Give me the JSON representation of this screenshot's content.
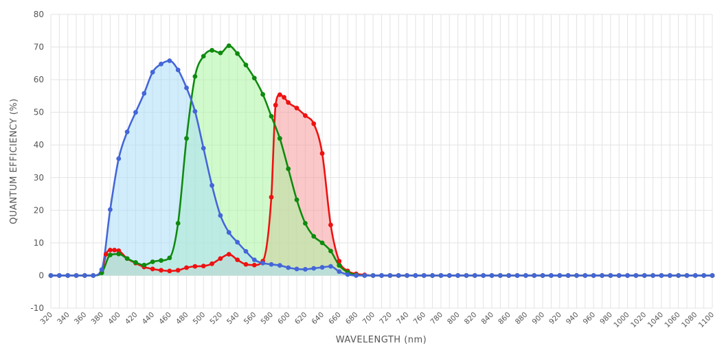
{
  "chart_data": {
    "type": "line",
    "xlabel": "WAVELENGTH (nm)",
    "ylabel": "QUANTUM EFFICIENCY (%)",
    "xlim": [
      320,
      1100
    ],
    "ylim": [
      -10,
      80
    ],
    "y_ticks": [
      -10,
      0,
      10,
      20,
      30,
      40,
      50,
      60,
      70,
      80
    ],
    "x_ticks": [
      320,
      340,
      360,
      380,
      400,
      420,
      440,
      460,
      480,
      500,
      520,
      540,
      560,
      580,
      600,
      620,
      640,
      660,
      680,
      700,
      720,
      740,
      760,
      780,
      800,
      820,
      840,
      860,
      880,
      900,
      920,
      940,
      960,
      980,
      1000,
      1020,
      1040,
      1060,
      1080,
      1100
    ],
    "grid": true,
    "fill_under": true,
    "series": [
      {
        "color": "#ee1111",
        "fill": "#f59b9b",
        "x": [
          320,
          330,
          340,
          350,
          360,
          370,
          380,
          385,
          390,
          395,
          400,
          410,
          420,
          430,
          440,
          450,
          460,
          470,
          480,
          490,
          500,
          510,
          520,
          530,
          540,
          550,
          560,
          570,
          580,
          585,
          590,
          595,
          600,
          610,
          620,
          630,
          640,
          650,
          660,
          670,
          680,
          690,
          700,
          710,
          720,
          730,
          740,
          750,
          760,
          770,
          780,
          790,
          800,
          810,
          820,
          830,
          840,
          850,
          860,
          870,
          880,
          890,
          900,
          910,
          920,
          930,
          940,
          950,
          960,
          970,
          980,
          990,
          1000,
          1010,
          1020,
          1030,
          1040,
          1050,
          1060,
          1070,
          1080,
          1090,
          1100
        ],
        "values": [
          0,
          0,
          0,
          0,
          0,
          0,
          1,
          6.5,
          7.8,
          7.8,
          7.6,
          5.2,
          3.8,
          2.6,
          2,
          1.6,
          1.4,
          1.6,
          2.4,
          2.8,
          2.9,
          3.6,
          5.2,
          6.5,
          4.8,
          3.4,
          3.2,
          4.4,
          24,
          52.2,
          55.4,
          54.6,
          53,
          51.3,
          49,
          46.5,
          37.4,
          15.5,
          4.4,
          1.4,
          0.5,
          0.2,
          0,
          0,
          0,
          0,
          0,
          0,
          0,
          0,
          0,
          0,
          0,
          0,
          0,
          0,
          0,
          0,
          0,
          0,
          0,
          0,
          0,
          0,
          0,
          0,
          0,
          0,
          0,
          0,
          0,
          0,
          0,
          0,
          0,
          0,
          0,
          0,
          0,
          0,
          0,
          0,
          0
        ]
      },
      {
        "color": "#0f8a0f",
        "fill": "#aaf5a0",
        "x": [
          320,
          330,
          340,
          350,
          360,
          370,
          380,
          390,
          400,
          410,
          420,
          430,
          440,
          450,
          460,
          470,
          480,
          490,
          500,
          510,
          520,
          530,
          540,
          550,
          560,
          570,
          580,
          590,
          600,
          610,
          620,
          630,
          640,
          650,
          660,
          670,
          680,
          690,
          700,
          710,
          720,
          730,
          740,
          750,
          760,
          770,
          780,
          790,
          800,
          810,
          820,
          830,
          840,
          850,
          860,
          870,
          880,
          890,
          900,
          910,
          920,
          930,
          940,
          950,
          960,
          970,
          980,
          990,
          1000,
          1010,
          1020,
          1030,
          1040,
          1050,
          1060,
          1070,
          1080,
          1090,
          1100
        ],
        "values": [
          0,
          0,
          0,
          0,
          0,
          0,
          0.8,
          6.3,
          6.6,
          5.2,
          4,
          3.2,
          4.2,
          4.6,
          5.4,
          16,
          42,
          61,
          67.2,
          69,
          68.2,
          70.4,
          68,
          64.5,
          60.5,
          55.5,
          48.8,
          42,
          32.7,
          23.2,
          16,
          12,
          10,
          7.5,
          3.1,
          1,
          0.2,
          0,
          0,
          0,
          0,
          0,
          0,
          0,
          0,
          0,
          0,
          0,
          0,
          0,
          0,
          0,
          0,
          0,
          0,
          0,
          0,
          0,
          0,
          0,
          0,
          0,
          0,
          0,
          0,
          0,
          0,
          0,
          0,
          0,
          0,
          0,
          0,
          0,
          0,
          0,
          0,
          0,
          0
        ]
      },
      {
        "color": "#4466d8",
        "fill": "#abdff8",
        "x": [
          320,
          330,
          340,
          350,
          360,
          370,
          380,
          390,
          400,
          410,
          420,
          430,
          440,
          450,
          460,
          470,
          480,
          490,
          500,
          510,
          520,
          530,
          540,
          550,
          560,
          570,
          580,
          590,
          600,
          610,
          620,
          630,
          640,
          650,
          660,
          670,
          680,
          690,
          700,
          710,
          720,
          730,
          740,
          750,
          760,
          770,
          780,
          790,
          800,
          810,
          820,
          830,
          840,
          850,
          860,
          870,
          880,
          890,
          900,
          910,
          920,
          930,
          940,
          950,
          960,
          970,
          980,
          990,
          1000,
          1010,
          1020,
          1030,
          1040,
          1050,
          1060,
          1070,
          1080,
          1090,
          1100
        ],
        "values": [
          0,
          0,
          0,
          0,
          0,
          0,
          1.8,
          20.2,
          35.8,
          44,
          50,
          55.8,
          62.3,
          64.8,
          65.8,
          63,
          57.5,
          50.3,
          39,
          27.6,
          18.4,
          13.2,
          10.2,
          7.4,
          4.8,
          3.8,
          3.4,
          3.1,
          2.4,
          2,
          1.9,
          2.2,
          2.5,
          2.8,
          1.2,
          0.3,
          0,
          0,
          0,
          0,
          0,
          0,
          0,
          0,
          0,
          0,
          0,
          0,
          0,
          0,
          0,
          0,
          0,
          0,
          0,
          0,
          0,
          0,
          0,
          0,
          0,
          0,
          0,
          0,
          0,
          0,
          0,
          0,
          0,
          0,
          0,
          0,
          0,
          0,
          0,
          0,
          0,
          0,
          0
        ]
      }
    ]
  }
}
